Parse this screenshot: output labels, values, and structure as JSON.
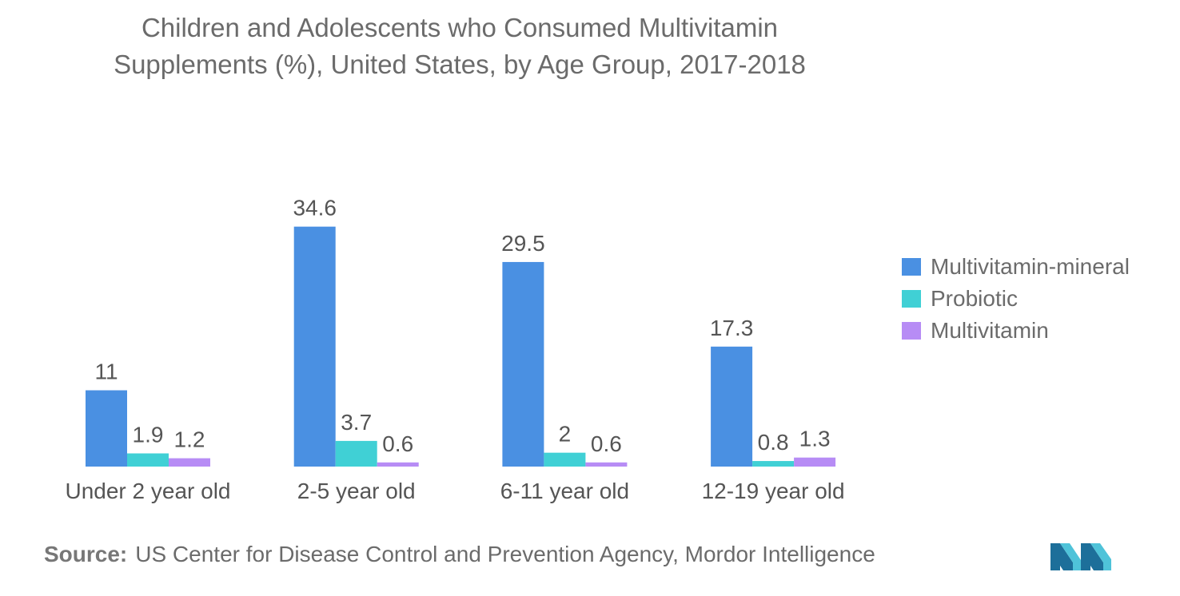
{
  "chart_data": {
    "type": "bar",
    "title": "Children and Adolescents who Consumed Multivitamin Supplements (%), United States, by Age Group, 2017-2018",
    "title_lines": [
      "Children and Adolescents who Consumed Multivitamin",
      "Supplements (%), United States, by Age Group, 2017-2018"
    ],
    "categories": [
      "Under 2 year old",
      "2-5 year old",
      "6-11 year old",
      "12-19 year old"
    ],
    "series": [
      {
        "name": "Multivitamin-mineral",
        "values": [
          11,
          34.6,
          29.5,
          17.3
        ],
        "labels": [
          "11",
          "34.6",
          "29.5",
          "17.3"
        ],
        "color": "#4a90e2"
      },
      {
        "name": "Probiotic",
        "values": [
          1.9,
          3.7,
          2,
          0.8
        ],
        "labels": [
          "1.9",
          "3.7",
          "2",
          "0.8"
        ],
        "color": "#40d0d5"
      },
      {
        "name": "Multivitamin",
        "values": [
          1.2,
          0.6,
          0.6,
          1.3
        ],
        "labels": [
          "1.2",
          "0.6",
          "0.6",
          "1.3"
        ],
        "color": "#b78cf5"
      }
    ],
    "xlabel": "",
    "ylabel": "",
    "ylim": [
      0,
      36
    ],
    "grid": false,
    "legend_position": "right"
  },
  "source": {
    "label": "Source:",
    "text": "US Center for Disease Control and Prevention Agency, Mordor Intelligence"
  },
  "logo": {
    "icon": "mordor-intelligence-logo",
    "color_dark": "#1d6f9a",
    "color_light": "#4fc3d9"
  }
}
